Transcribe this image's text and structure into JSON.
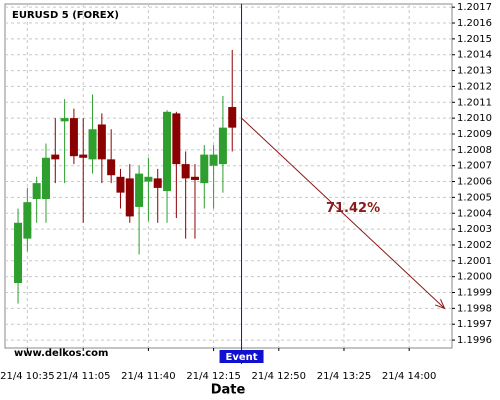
{
  "chart_data": {
    "type": "candlestick",
    "title": "EURUSD 5 (FOREX)",
    "watermark": "www.delkos.com",
    "x_label": "Date",
    "x": [
      630,
      635,
      640,
      645,
      650,
      655,
      660,
      665,
      670,
      675,
      680,
      685,
      690,
      695,
      700,
      705,
      710,
      715,
      720,
      725,
      730,
      735,
      740,
      745
    ],
    "open": [
      1.19996,
      1.20024,
      1.20049,
      1.20049,
      1.20077,
      1.20098,
      1.201,
      1.20077,
      1.20074,
      1.20096,
      1.20074,
      1.20063,
      1.20062,
      1.20044,
      1.2006,
      1.20062,
      1.20054,
      1.20103,
      1.20071,
      1.20063,
      1.20059,
      1.2007,
      1.20071,
      1.20107
    ],
    "high": [
      1.20043,
      1.20056,
      1.20063,
      1.20084,
      1.201,
      1.20112,
      1.20106,
      1.201,
      1.20115,
      1.20103,
      1.20093,
      1.20068,
      1.20071,
      1.2007,
      1.20075,
      1.20068,
      1.20105,
      1.20104,
      1.20079,
      1.20071,
      1.20083,
      1.20083,
      1.20114,
      1.20143
    ],
    "low": [
      1.19983,
      1.20016,
      1.20034,
      1.20034,
      1.20059,
      1.20059,
      1.20071,
      1.20034,
      1.20065,
      1.20059,
      1.20059,
      1.20043,
      1.20034,
      1.20014,
      1.20035,
      1.20034,
      1.20034,
      1.20037,
      1.20024,
      1.20024,
      1.20043,
      1.20043,
      1.20053,
      1.20079
    ],
    "close": [
      1.20034,
      1.20047,
      1.20059,
      1.20075,
      1.20074,
      1.201,
      1.20076,
      1.20075,
      1.20093,
      1.20074,
      1.20064,
      1.20053,
      1.20038,
      1.20065,
      1.20063,
      1.20056,
      1.20104,
      1.20071,
      1.20062,
      1.20061,
      1.20077,
      1.20077,
      1.20094,
      1.20094
    ],
    "up_color": "#2e9e2e",
    "down_color": "#8b0000",
    "xlim": [
      623,
      863
    ],
    "xticks": [
      {
        "value": 635,
        "label": "21/4 10:35"
      },
      {
        "value": 665,
        "label": "21/4 11:05"
      },
      {
        "value": 700,
        "label": "21/4 11:40"
      },
      {
        "value": 735,
        "label": "21/4 12:15"
      },
      {
        "value": 770,
        "label": "21/4 12:50"
      },
      {
        "value": 805,
        "label": "21/4 13:25"
      },
      {
        "value": 840,
        "label": "21/4 14:00"
      }
    ],
    "ylim": [
      1.19955,
      1.20172
    ],
    "yticks": [
      {
        "value": 1.1996,
        "label": "1.1996"
      },
      1.1997,
      1.1998,
      1.1999,
      {
        "value": 1.2,
        "label": "1.2000"
      },
      1.2001,
      1.2002,
      1.2003,
      1.2004,
      1.2005,
      1.2006,
      1.2007,
      1.2008,
      1.2009,
      {
        "value": 1.201,
        "label": "1.2010"
      },
      1.2011,
      1.2012,
      1.2013,
      1.2014,
      1.2015,
      1.2016,
      1.2017
    ],
    "grid": true,
    "event": {
      "x": 750,
      "label": "Event",
      "color": "#1010d0"
    },
    "forecast": {
      "x": [
        750,
        859
      ],
      "y": [
        1.201,
        1.1998
      ],
      "label": "71.42%",
      "color": "#8b1a1a"
    }
  }
}
